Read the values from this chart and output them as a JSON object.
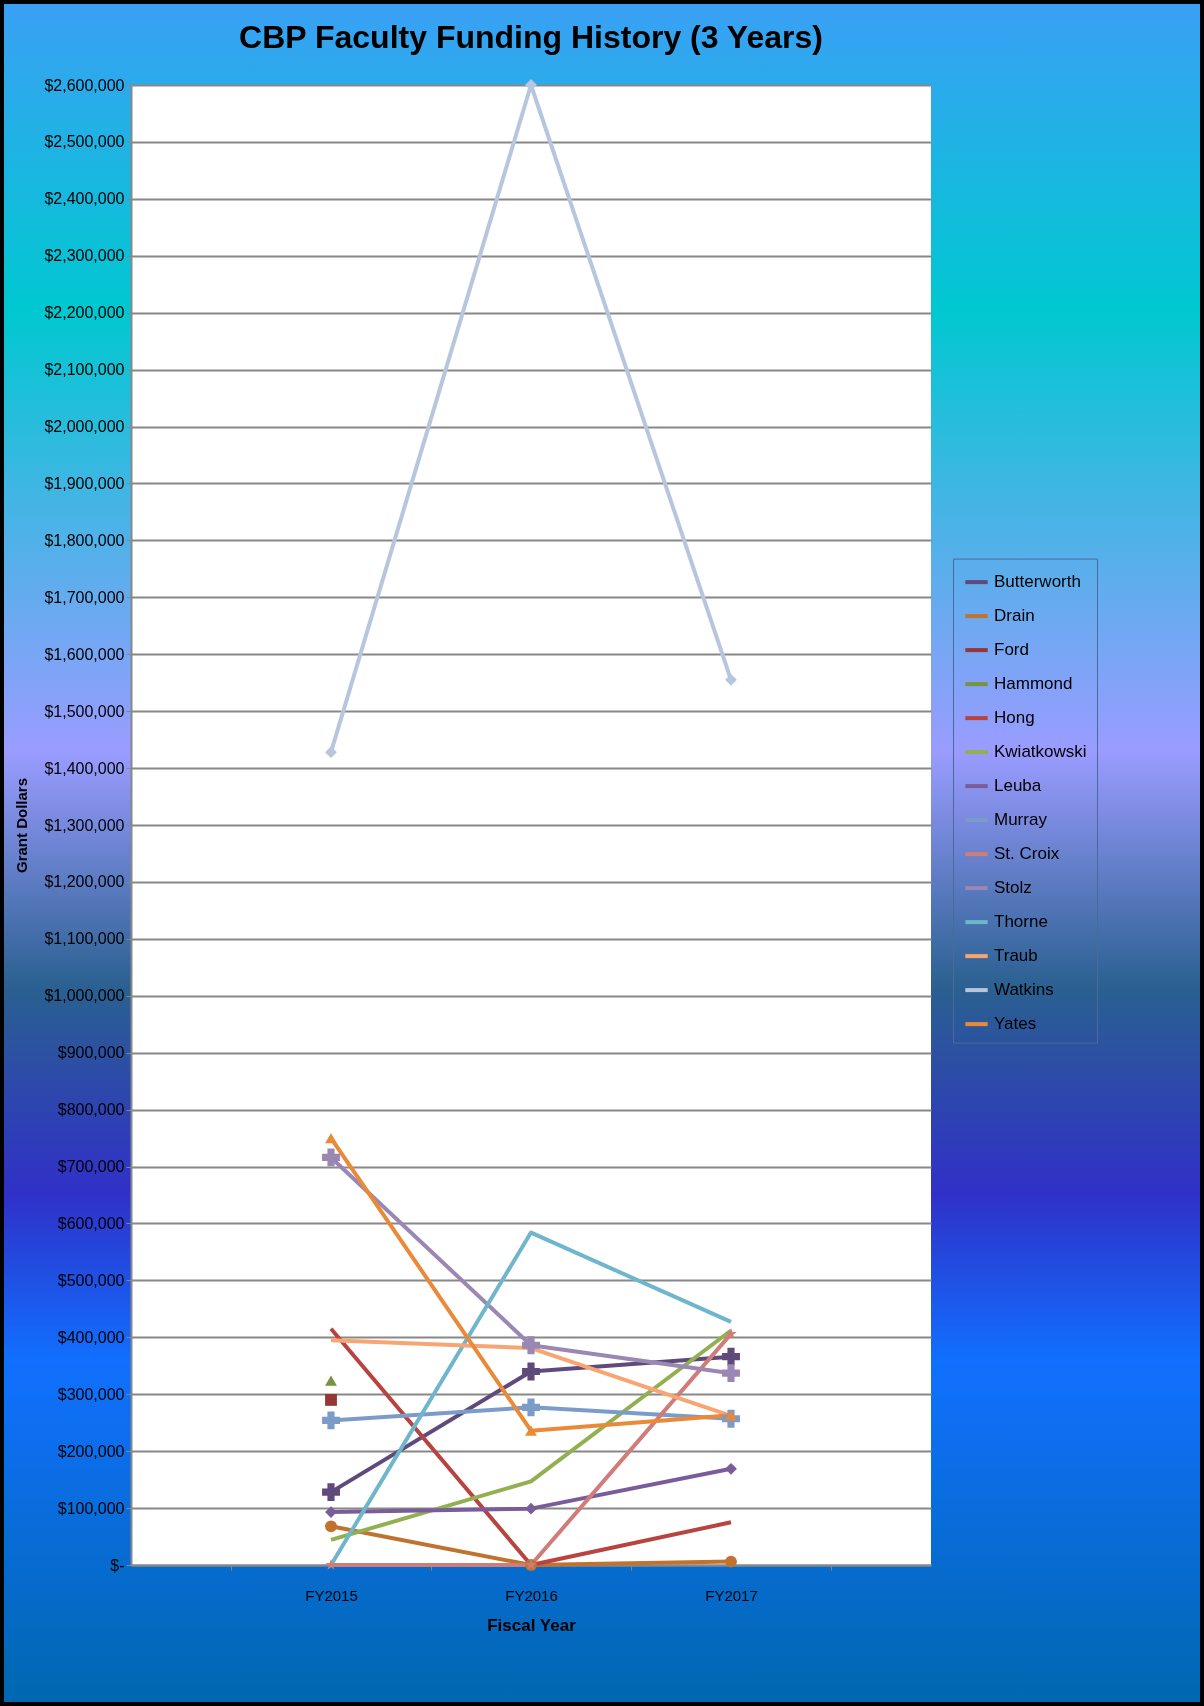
{
  "chart_data": {
    "type": "line",
    "title": "CBP Faculty Funding History (3 Years)",
    "xlabel": "Fiscal Year",
    "ylabel": "Grant Dollars",
    "categories": [
      "FY2015",
      "FY2016",
      "FY2017"
    ],
    "series": [
      {
        "name": "Butterworth",
        "color": "#604a7b",
        "marker": "cross",
        "values": [
          128000,
          340000,
          366000
        ]
      },
      {
        "name": "Drain",
        "color": "#c0732f",
        "marker": "circle",
        "values": [
          68000,
          0,
          6000
        ]
      },
      {
        "name": "Ford",
        "color": "#953735",
        "marker": "square",
        "values": [
          290000,
          null,
          null
        ]
      },
      {
        "name": "Hammond",
        "color": "#77933c",
        "marker": "triangle",
        "values": [
          324000,
          null,
          null
        ]
      },
      {
        "name": "Hong",
        "color": "#b84340",
        "marker": "none",
        "values": [
          415000,
          0,
          75000
        ]
      },
      {
        "name": "Kwiatkowski",
        "color": "#92b050",
        "marker": "none",
        "values": [
          44000,
          147000,
          412000
        ]
      },
      {
        "name": "Leuba",
        "color": "#7a5c9a",
        "marker": "diamond",
        "values": [
          93000,
          99000,
          169000
        ]
      },
      {
        "name": "Murray",
        "color": "#7b9bc8",
        "marker": "cross",
        "values": [
          254000,
          277000,
          257000
        ]
      },
      {
        "name": "St. Croix",
        "color": "#d07c78",
        "marker": "star",
        "values": [
          0,
          0,
          406000
        ]
      },
      {
        "name": "Stolz",
        "color": "#9a87b3",
        "marker": "cross",
        "values": [
          716000,
          386000,
          337000
        ]
      },
      {
        "name": "Thorne",
        "color": "#6fb5cc",
        "marker": "none",
        "values": [
          0,
          584000,
          427000
        ]
      },
      {
        "name": "Traub",
        "color": "#f7a572",
        "marker": "none",
        "values": [
          395000,
          381000,
          262000
        ]
      },
      {
        "name": "Watkins",
        "color": "#b7c6de",
        "marker": "diamond",
        "values": [
          1428000,
          2600000,
          1555000
        ]
      },
      {
        "name": "Yates",
        "color": "#ea8a38",
        "marker": "triangle",
        "values": [
          750000,
          236000,
          263000
        ]
      }
    ],
    "ylim": [
      0,
      2600000
    ],
    "yticks": [
      {
        "value": 0,
        "label": "$-"
      },
      {
        "value": 100000,
        "label": "$100,000"
      },
      {
        "value": 200000,
        "label": "$200,000"
      },
      {
        "value": 300000,
        "label": "$300,000"
      },
      {
        "value": 400000,
        "label": "$400,000"
      },
      {
        "value": 500000,
        "label": "$500,000"
      },
      {
        "value": 600000,
        "label": "$600,000"
      },
      {
        "value": 700000,
        "label": "$700,000"
      },
      {
        "value": 800000,
        "label": "$800,000"
      },
      {
        "value": 900000,
        "label": "$900,000"
      },
      {
        "value": 1000000,
        "label": "$1,000,000"
      },
      {
        "value": 1100000,
        "label": "$1,100,000"
      },
      {
        "value": 1200000,
        "label": "$1,200,000"
      },
      {
        "value": 1300000,
        "label": "$1,300,000"
      },
      {
        "value": 1400000,
        "label": "$1,400,000"
      },
      {
        "value": 1500000,
        "label": "$1,500,000"
      },
      {
        "value": 1600000,
        "label": "$1,600,000"
      },
      {
        "value": 1700000,
        "label": "$1,700,000"
      },
      {
        "value": 1800000,
        "label": "$1,800,000"
      },
      {
        "value": 1900000,
        "label": "$1,900,000"
      },
      {
        "value": 2000000,
        "label": "$2,000,000"
      },
      {
        "value": 2100000,
        "label": "$2,100,000"
      },
      {
        "value": 2200000,
        "label": "$2,200,000"
      },
      {
        "value": 2300000,
        "label": "$2,300,000"
      },
      {
        "value": 2400000,
        "label": "$2,400,000"
      },
      {
        "value": 2500000,
        "label": "$2,500,000"
      },
      {
        "value": 2600000,
        "label": "$2,600,000"
      }
    ],
    "grid": "y",
    "legend": "right",
    "line_style": "solid"
  }
}
